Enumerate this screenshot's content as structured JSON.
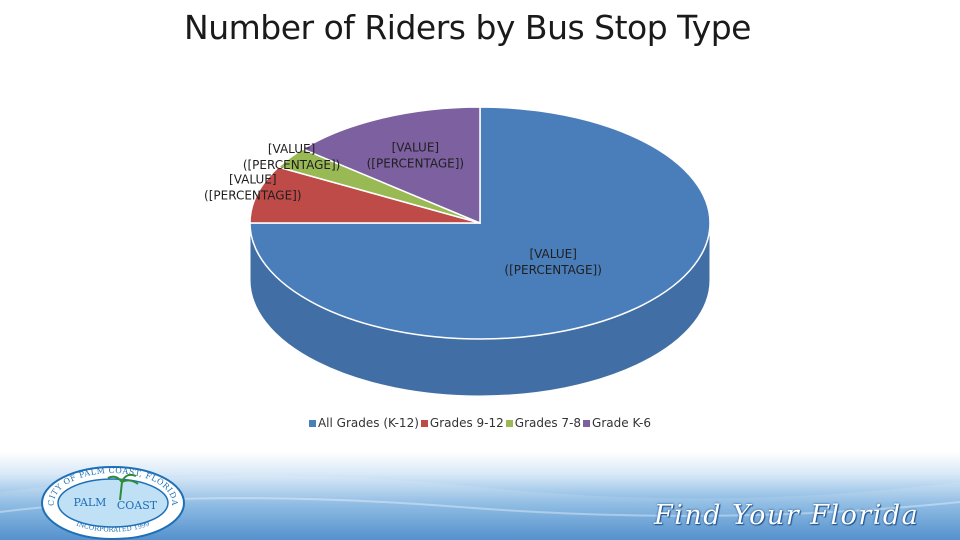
{
  "title": "Number of Riders by Bus Stop Type",
  "chart_data": {
    "type": "pie",
    "style": "3d",
    "title": "Number of Riders by Bus Stop Type",
    "categories": [
      "All Grades (K-12)",
      "Grades 9-12",
      "Grades 7-8",
      "Grade K-6"
    ],
    "values": [
      75,
      8,
      3,
      14
    ],
    "colors": [
      "#4a7ebb",
      "#be4b48",
      "#98b954",
      "#7d60a0"
    ],
    "data_labels": [
      {
        "value": "[VALUE]",
        "percentage": "([PERCENTAGE])"
      },
      {
        "value": "[VALUE]",
        "percentage": "([PERCENTAGE])"
      },
      {
        "value": "[VALUE]",
        "percentage": "([PERCENTAGE])"
      },
      {
        "value": "[VALUE]",
        "percentage": "([PERCENTAGE])"
      }
    ],
    "legend_position": "bottom"
  },
  "footer": {
    "logo_text_top": "CITY OF PALM COAST, FLORIDA",
    "logo_text_palm": "PALM",
    "logo_text_coast": "COAST",
    "logo_text_bottom": "INCORPORATED 1999",
    "tagline": "Find Your Florida"
  }
}
